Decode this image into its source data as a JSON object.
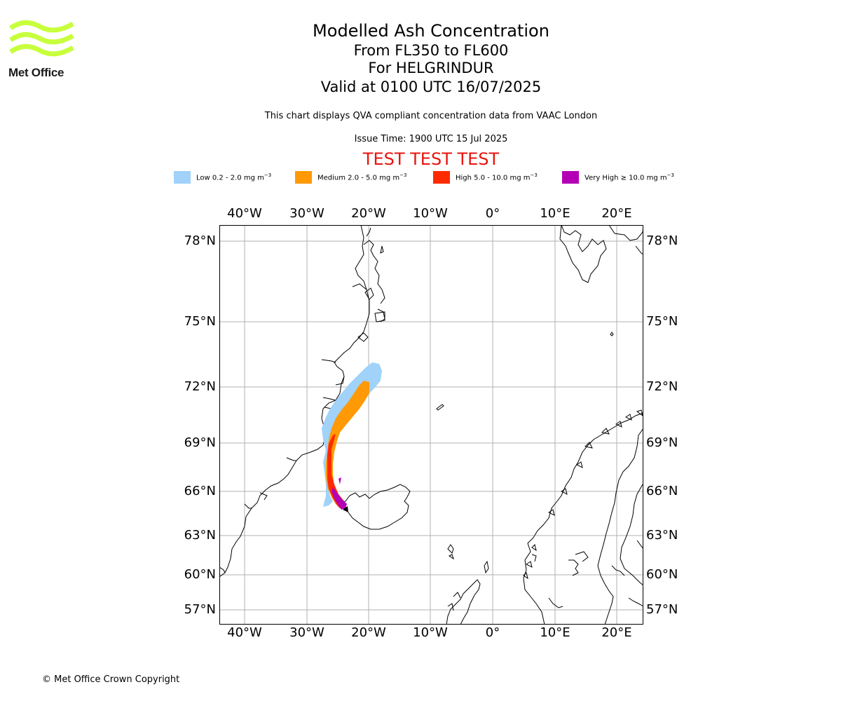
{
  "logo": {
    "text": "Met Office",
    "color": "#c8ff3c"
  },
  "title": {
    "line1": "Modelled Ash Concentration",
    "line2": "From FL350 to FL600",
    "line3": "For HELGRINDUR",
    "line4": "Valid at 0100 UTC 16/07/2025"
  },
  "subtitle": "This chart displays QVA compliant concentration data from VAAC London",
  "issue_time": "Issue Time: 1900 UTC 15 Jul 2025",
  "test_banner": "TEST TEST TEST",
  "legend": [
    {
      "label": "Low 0.2 - 2.0 mg m",
      "color": "#a0d2fa"
    },
    {
      "label": "Medium 2.0 - 5.0 mg m",
      "color": "#ff9a06"
    },
    {
      "label": "High 5.0 - 10.0 mg m",
      "color": "#ff2b00"
    },
    {
      "label": "Very High ≥ 10.0 mg m",
      "color": "#b400b4"
    }
  ],
  "legend_unit_exp": "−3",
  "map": {
    "lon_ticks": [
      "40°W",
      "30°W",
      "20°W",
      "10°W",
      "0°",
      "10°E",
      "20°E"
    ],
    "lat_ticks": [
      "78°N",
      "75°N",
      "72°N",
      "69°N",
      "66°N",
      "63°N",
      "60°N",
      "57°N"
    ],
    "lon_values": [
      -40,
      -30,
      -20,
      -10,
      0,
      10,
      20
    ],
    "lat_values": [
      78,
      75,
      72,
      69,
      66,
      63,
      60,
      57
    ],
    "lon_range": [
      -44,
      24
    ],
    "lat_range": [
      55.5,
      79
    ],
    "volcano": {
      "name": "HELGRINDUR",
      "lat": 64.86,
      "lon": -23.25
    }
  },
  "copyright": "© Met Office Crown Copyright"
}
